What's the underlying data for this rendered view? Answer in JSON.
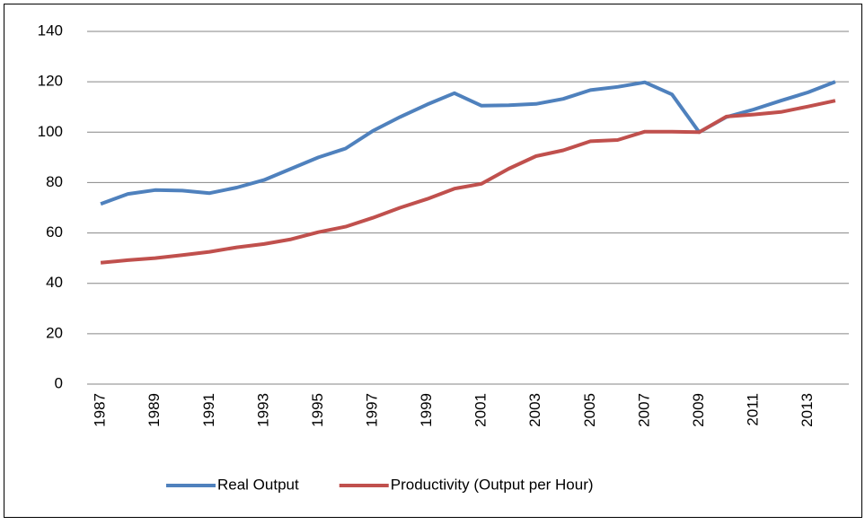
{
  "chart_data": {
    "type": "line",
    "categories": [
      "1987",
      null,
      "1989",
      null,
      "1991",
      null,
      "1993",
      null,
      "1995",
      null,
      "1997",
      null,
      "1999",
      null,
      "2001",
      null,
      "2003",
      null,
      "2005",
      null,
      "2007",
      null,
      "2009",
      null,
      "2011",
      null,
      "2013",
      null
    ],
    "series": [
      {
        "name": "Real Output",
        "color": "#4f81bd",
        "values": [
          71.5,
          75.5,
          77,
          76.8,
          75.8,
          78,
          81,
          85.5,
          90,
          93.5,
          100.5,
          106,
          111,
          115.5,
          110.5,
          110.7,
          111.2,
          113.2,
          116.7,
          118,
          119.8,
          115,
          100,
          106,
          109,
          112.5,
          115.8,
          120
        ]
      },
      {
        "name": "Productivity (Output per Hour)",
        "color": "#c0504d",
        "values": [
          48.2,
          49.2,
          50,
          51.2,
          52.5,
          54.3,
          55.6,
          57.5,
          60.3,
          62.5,
          66,
          70,
          73.5,
          77.6,
          79.5,
          85.5,
          90.5,
          92.8,
          96.4,
          96.9,
          100.2,
          100.2,
          100,
          106.2,
          107,
          108,
          110.2,
          112.5
        ]
      }
    ],
    "ylim": [
      0,
      140
    ],
    "yticks": [
      0,
      20,
      40,
      60,
      80,
      100,
      120,
      140
    ],
    "grid": true,
    "legend": "bottom"
  }
}
